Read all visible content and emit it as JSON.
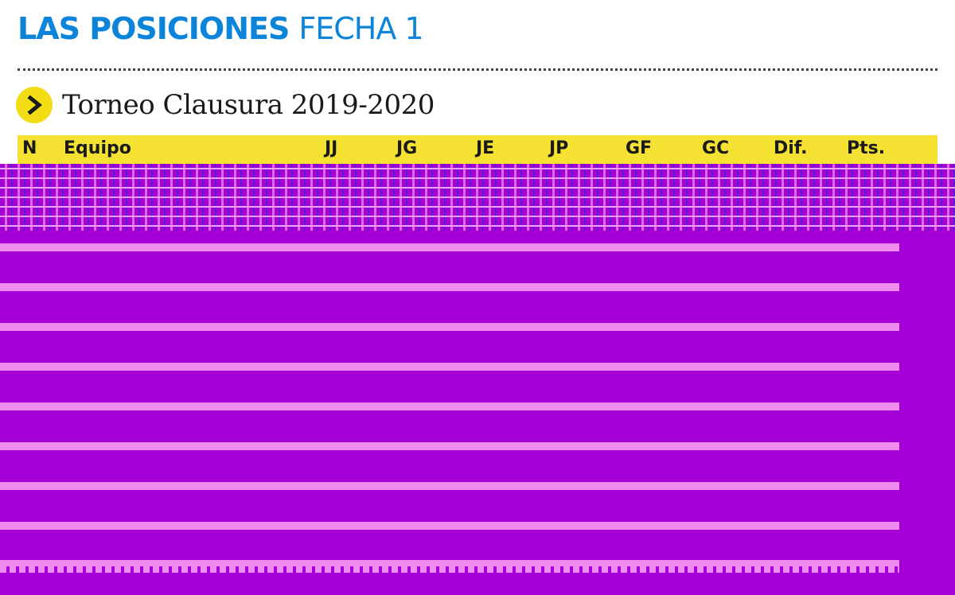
{
  "header": {
    "title": "LAS POSICIONES",
    "subtitle": "FECHA 1"
  },
  "tournament": {
    "name": "Torneo Clausura 2019-2020"
  },
  "table": {
    "columns": [
      "N",
      "Equipo",
      "JJ",
      "JG",
      "JE",
      "JP",
      "GF",
      "GC",
      "Dif.",
      "Pts."
    ]
  },
  "colors": {
    "title": "#0b84d9",
    "header_band": "#f5e132",
    "bullet": "#f2dc16"
  },
  "icons": {
    "bullet": "chevron-right-icon"
  }
}
